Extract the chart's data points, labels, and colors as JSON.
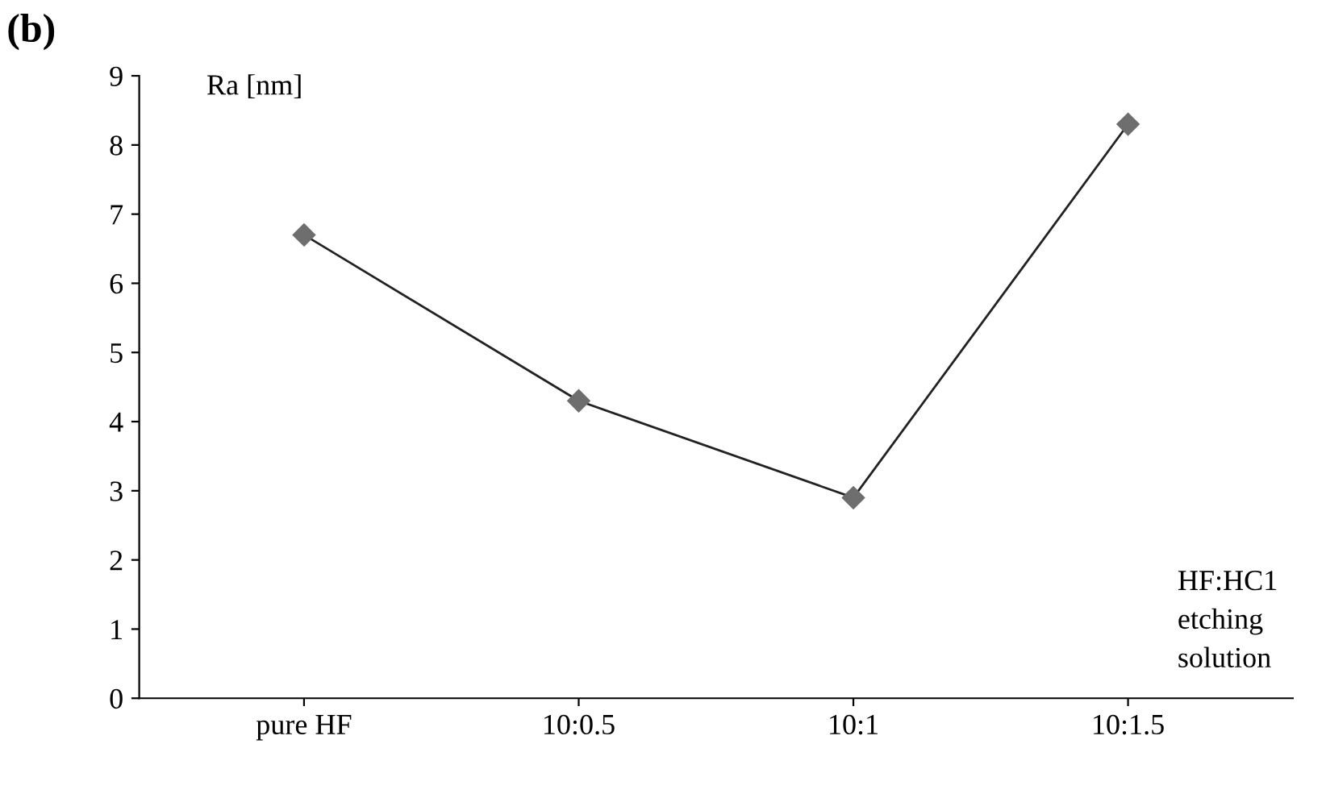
{
  "chart_data": {
    "type": "line",
    "title": "(b)",
    "ylabel": "Ra [nm]",
    "categories": [
      "pure HF",
      "10:0.5",
      "10:1",
      "10:1.5"
    ],
    "series": [
      {
        "color": "#6e6e6e",
        "values": [
          6.7,
          4.3,
          2.9,
          8.3
        ]
      }
    ],
    "ylim": [
      0,
      9
    ],
    "yticks": [
      0,
      1,
      2,
      3,
      4,
      5,
      6,
      7,
      8,
      9
    ],
    "marker": "diamond",
    "line_style": "solid",
    "grid": false,
    "legend": false,
    "annotations": [
      "HF:HC1\netching\nsolution"
    ]
  }
}
